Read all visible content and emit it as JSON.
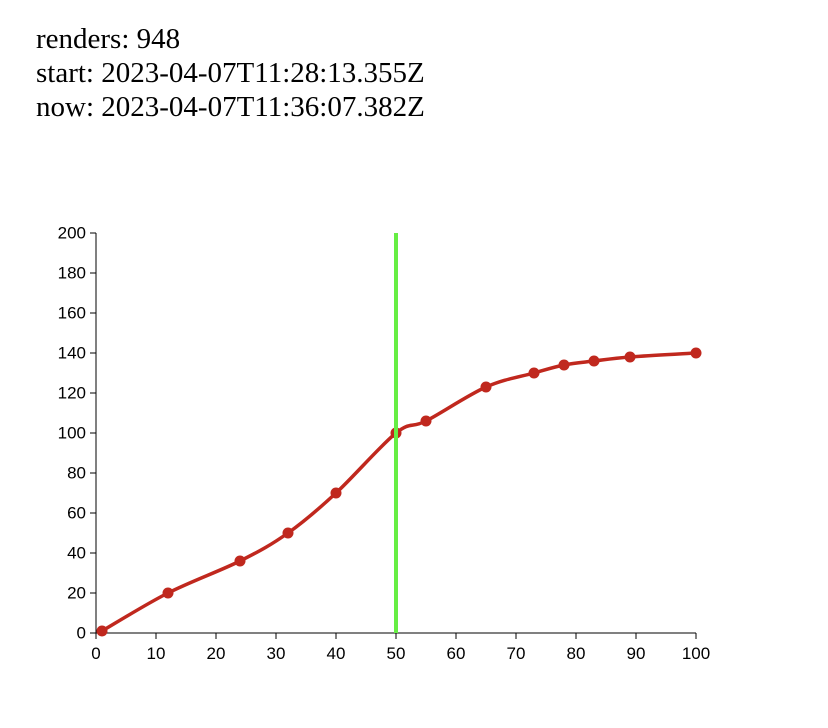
{
  "header": {
    "renders": "renders: 948",
    "start": "start: 2023-04-07T11:28:13.355Z",
    "now": "now: 2023-04-07T11:36:07.382Z"
  },
  "chart_data": {
    "type": "line",
    "x": [
      1,
      12,
      24,
      32,
      40,
      50,
      55,
      65,
      73,
      78,
      83,
      89,
      100
    ],
    "series": [
      {
        "values": [
          1,
          20,
          36,
          50,
          70,
          100,
          106,
          123,
          130,
          134,
          136,
          138,
          140
        ]
      }
    ],
    "xlim": [
      0,
      100
    ],
    "ylim": [
      0,
      200
    ],
    "xticks": [
      0,
      10,
      20,
      30,
      40,
      50,
      60,
      70,
      80,
      90,
      100
    ],
    "yticks": [
      0,
      20,
      40,
      60,
      80,
      100,
      120,
      140,
      160,
      180,
      200
    ],
    "marker_x": 50,
    "line_color": "#c0281e",
    "marker_color": "#66ee44",
    "grid": false
  }
}
